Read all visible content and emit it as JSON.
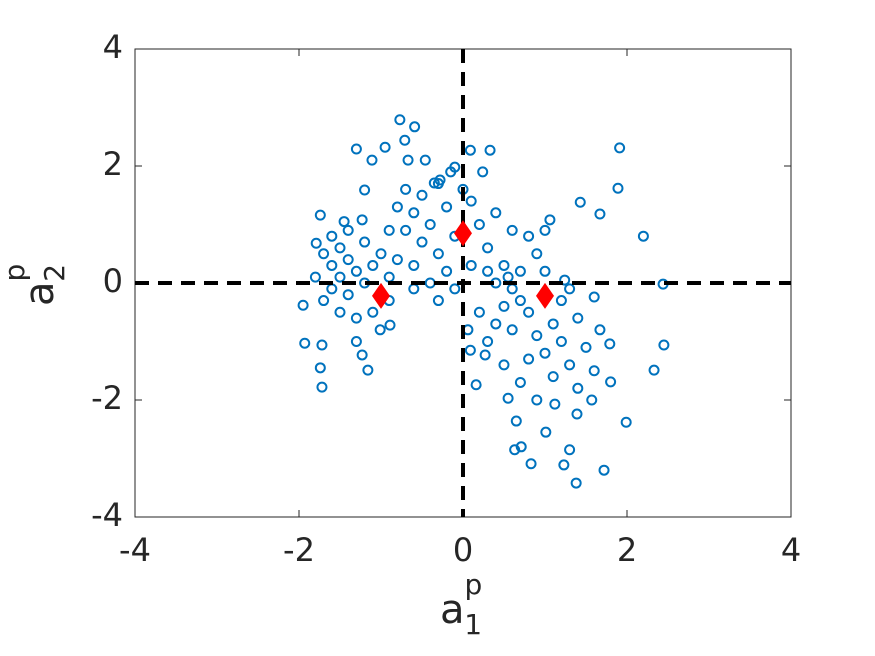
{
  "chart_data": {
    "type": "scatter",
    "xlabel": {
      "base": "a",
      "sup": "p",
      "sub": "1"
    },
    "ylabel": {
      "base": "a",
      "sup": "p",
      "sub": "2"
    },
    "xlim": [
      -4,
      4
    ],
    "ylim": [
      -4,
      4
    ],
    "xticks": [
      -4,
      -2,
      0,
      2,
      4
    ],
    "yticks": [
      -4,
      -2,
      0,
      2,
      4
    ],
    "hlines": [
      0
    ],
    "vlines": [
      0
    ],
    "series": [
      {
        "color": "#0072bd",
        "marker": "circle",
        "x": [
          -1.3,
          -0.77,
          -0.59,
          -0.71,
          -0.67,
          -0.46,
          -0.95,
          -1.11,
          -1.2,
          -1.23,
          -1.74,
          -1.79,
          -1.95,
          -1.93,
          -1.72,
          -1.74,
          -1.72,
          -1.23,
          -1.16,
          -0.89,
          -1.01,
          1.91,
          1.89,
          1.43,
          1.67,
          2.2,
          2.44,
          2.45,
          2.33,
          1.99,
          1.72,
          1.38,
          1.23,
          1.3,
          0.83,
          0.63,
          0.71,
          1.01,
          0.65,
          0.55,
          0.16,
          1.12,
          1.39,
          1.57,
          1.8,
          1.79,
          1.67,
          1.6,
          1.24,
          1.06,
          0.09,
          0.33,
          0.24,
          -0.1,
          -0.28,
          -0.35,
          0.06,
          0.09,
          0.27,
          -1.6,
          -1.5,
          -1.4,
          -1.3,
          -1.5,
          -1.4,
          -1.6,
          -1.7,
          -1.5,
          -1.3,
          -1.2,
          -1.1,
          -1.0,
          -1.2,
          -1.6,
          -1.8,
          -1.4,
          -1.3,
          -1.1,
          -0.9,
          -0.8,
          -0.9,
          -1.7,
          -1.45,
          -0.7,
          -0.6,
          -0.5,
          -0.4,
          -0.3,
          -0.2,
          -0.1,
          -0.5,
          -0.7,
          -0.8,
          -0.6,
          -0.4,
          -0.2,
          -0.3,
          -0.1,
          -0.6,
          -0.9,
          -0.3,
          0.1,
          0.2,
          0.3,
          0.1,
          -0.15,
          0.0,
          0.3,
          0.4,
          0.5,
          0.6,
          0.7,
          0.5,
          0.4,
          0.6,
          0.8,
          0.9,
          1.0,
          1.1,
          1.2,
          1.3,
          1.1,
          0.8,
          0.7,
          0.9,
          1.4,
          1.5,
          1.2,
          0.9,
          0.8,
          1.0,
          0.6,
          0.4,
          0.2,
          0.3,
          0.5,
          1.4,
          1.6,
          1.3,
          0.7,
          0.55,
          1.0
        ],
        "values": [
          2.29,
          2.79,
          2.67,
          2.44,
          2.1,
          2.1,
          2.32,
          2.1,
          1.59,
          1.08,
          1.16,
          0.68,
          -0.38,
          -1.03,
          -1.06,
          -1.45,
          -1.78,
          -1.23,
          -1.49,
          -0.72,
          -0.8,
          2.31,
          1.62,
          1.38,
          1.18,
          0.8,
          -0.02,
          -1.06,
          -1.49,
          -2.38,
          -3.2,
          -3.42,
          -3.11,
          -2.85,
          -3.09,
          -2.85,
          -2.8,
          -2.55,
          -2.36,
          -1.97,
          -1.74,
          -2.07,
          -2.24,
          -2.0,
          -1.69,
          -1.04,
          -0.8,
          -0.24,
          0.05,
          1.08,
          2.27,
          2.27,
          1.9,
          1.98,
          1.76,
          1.71,
          -0.8,
          -1.15,
          -1.23,
          0.3,
          0.1,
          0.4,
          0.2,
          0.6,
          0.9,
          -0.1,
          -0.3,
          -0.5,
          -0.6,
          0.0,
          0.3,
          0.5,
          0.7,
          0.8,
          0.1,
          -0.2,
          -1.0,
          -0.5,
          0.1,
          0.4,
          -0.3,
          0.5,
          1.05,
          0.9,
          1.2,
          0.7,
          1.0,
          0.5,
          1.3,
          0.8,
          1.5,
          1.6,
          1.3,
          0.3,
          0.0,
          0.2,
          -0.3,
          -0.1,
          -0.1,
          0.9,
          1.7,
          1.4,
          1.0,
          0.6,
          0.3,
          1.9,
          1.6,
          0.2,
          0.0,
          0.3,
          -0.1,
          0.2,
          -0.4,
          -0.7,
          -0.8,
          -0.5,
          -0.9,
          -1.2,
          -0.7,
          -1.0,
          -1.4,
          -1.6,
          -1.3,
          -1.7,
          -2.0,
          -0.6,
          -1.1,
          -0.3,
          0.5,
          0.8,
          0.9,
          0.9,
          1.2,
          -0.5,
          -1.0,
          -1.4,
          -1.8,
          -1.5,
          -0.1,
          -0.3,
          0.1,
          0.2
        ]
      },
      {
        "color": "#ff0000",
        "marker": "diamond",
        "x": [
          -1,
          0,
          1
        ],
        "values": [
          -0.22,
          0.85,
          -0.22
        ]
      }
    ]
  }
}
